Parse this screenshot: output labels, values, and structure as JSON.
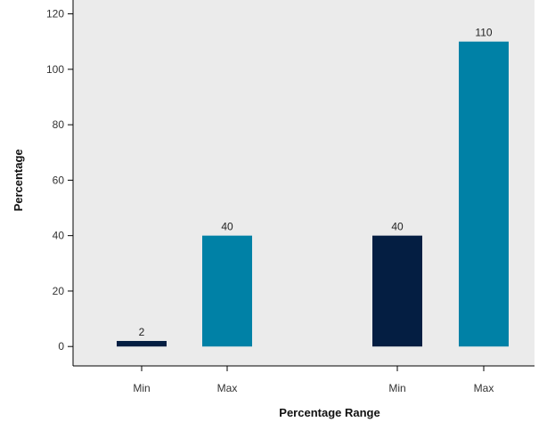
{
  "chart_data": {
    "type": "bar",
    "title": "",
    "xlabel": "Percentage Range",
    "ylabel": "Percentage",
    "ylim": [
      -7,
      125
    ],
    "yticks": [
      0,
      20,
      40,
      60,
      80,
      100,
      120
    ],
    "grid": false,
    "legend": "none",
    "categories": [
      "Min",
      "Max",
      "Min",
      "Max"
    ],
    "values": [
      2,
      40,
      40,
      110
    ],
    "bar_colors": [
      "#041e42",
      "#0081a6",
      "#041e42",
      "#0081a6"
    ],
    "plot_background": "#ebebeb"
  }
}
